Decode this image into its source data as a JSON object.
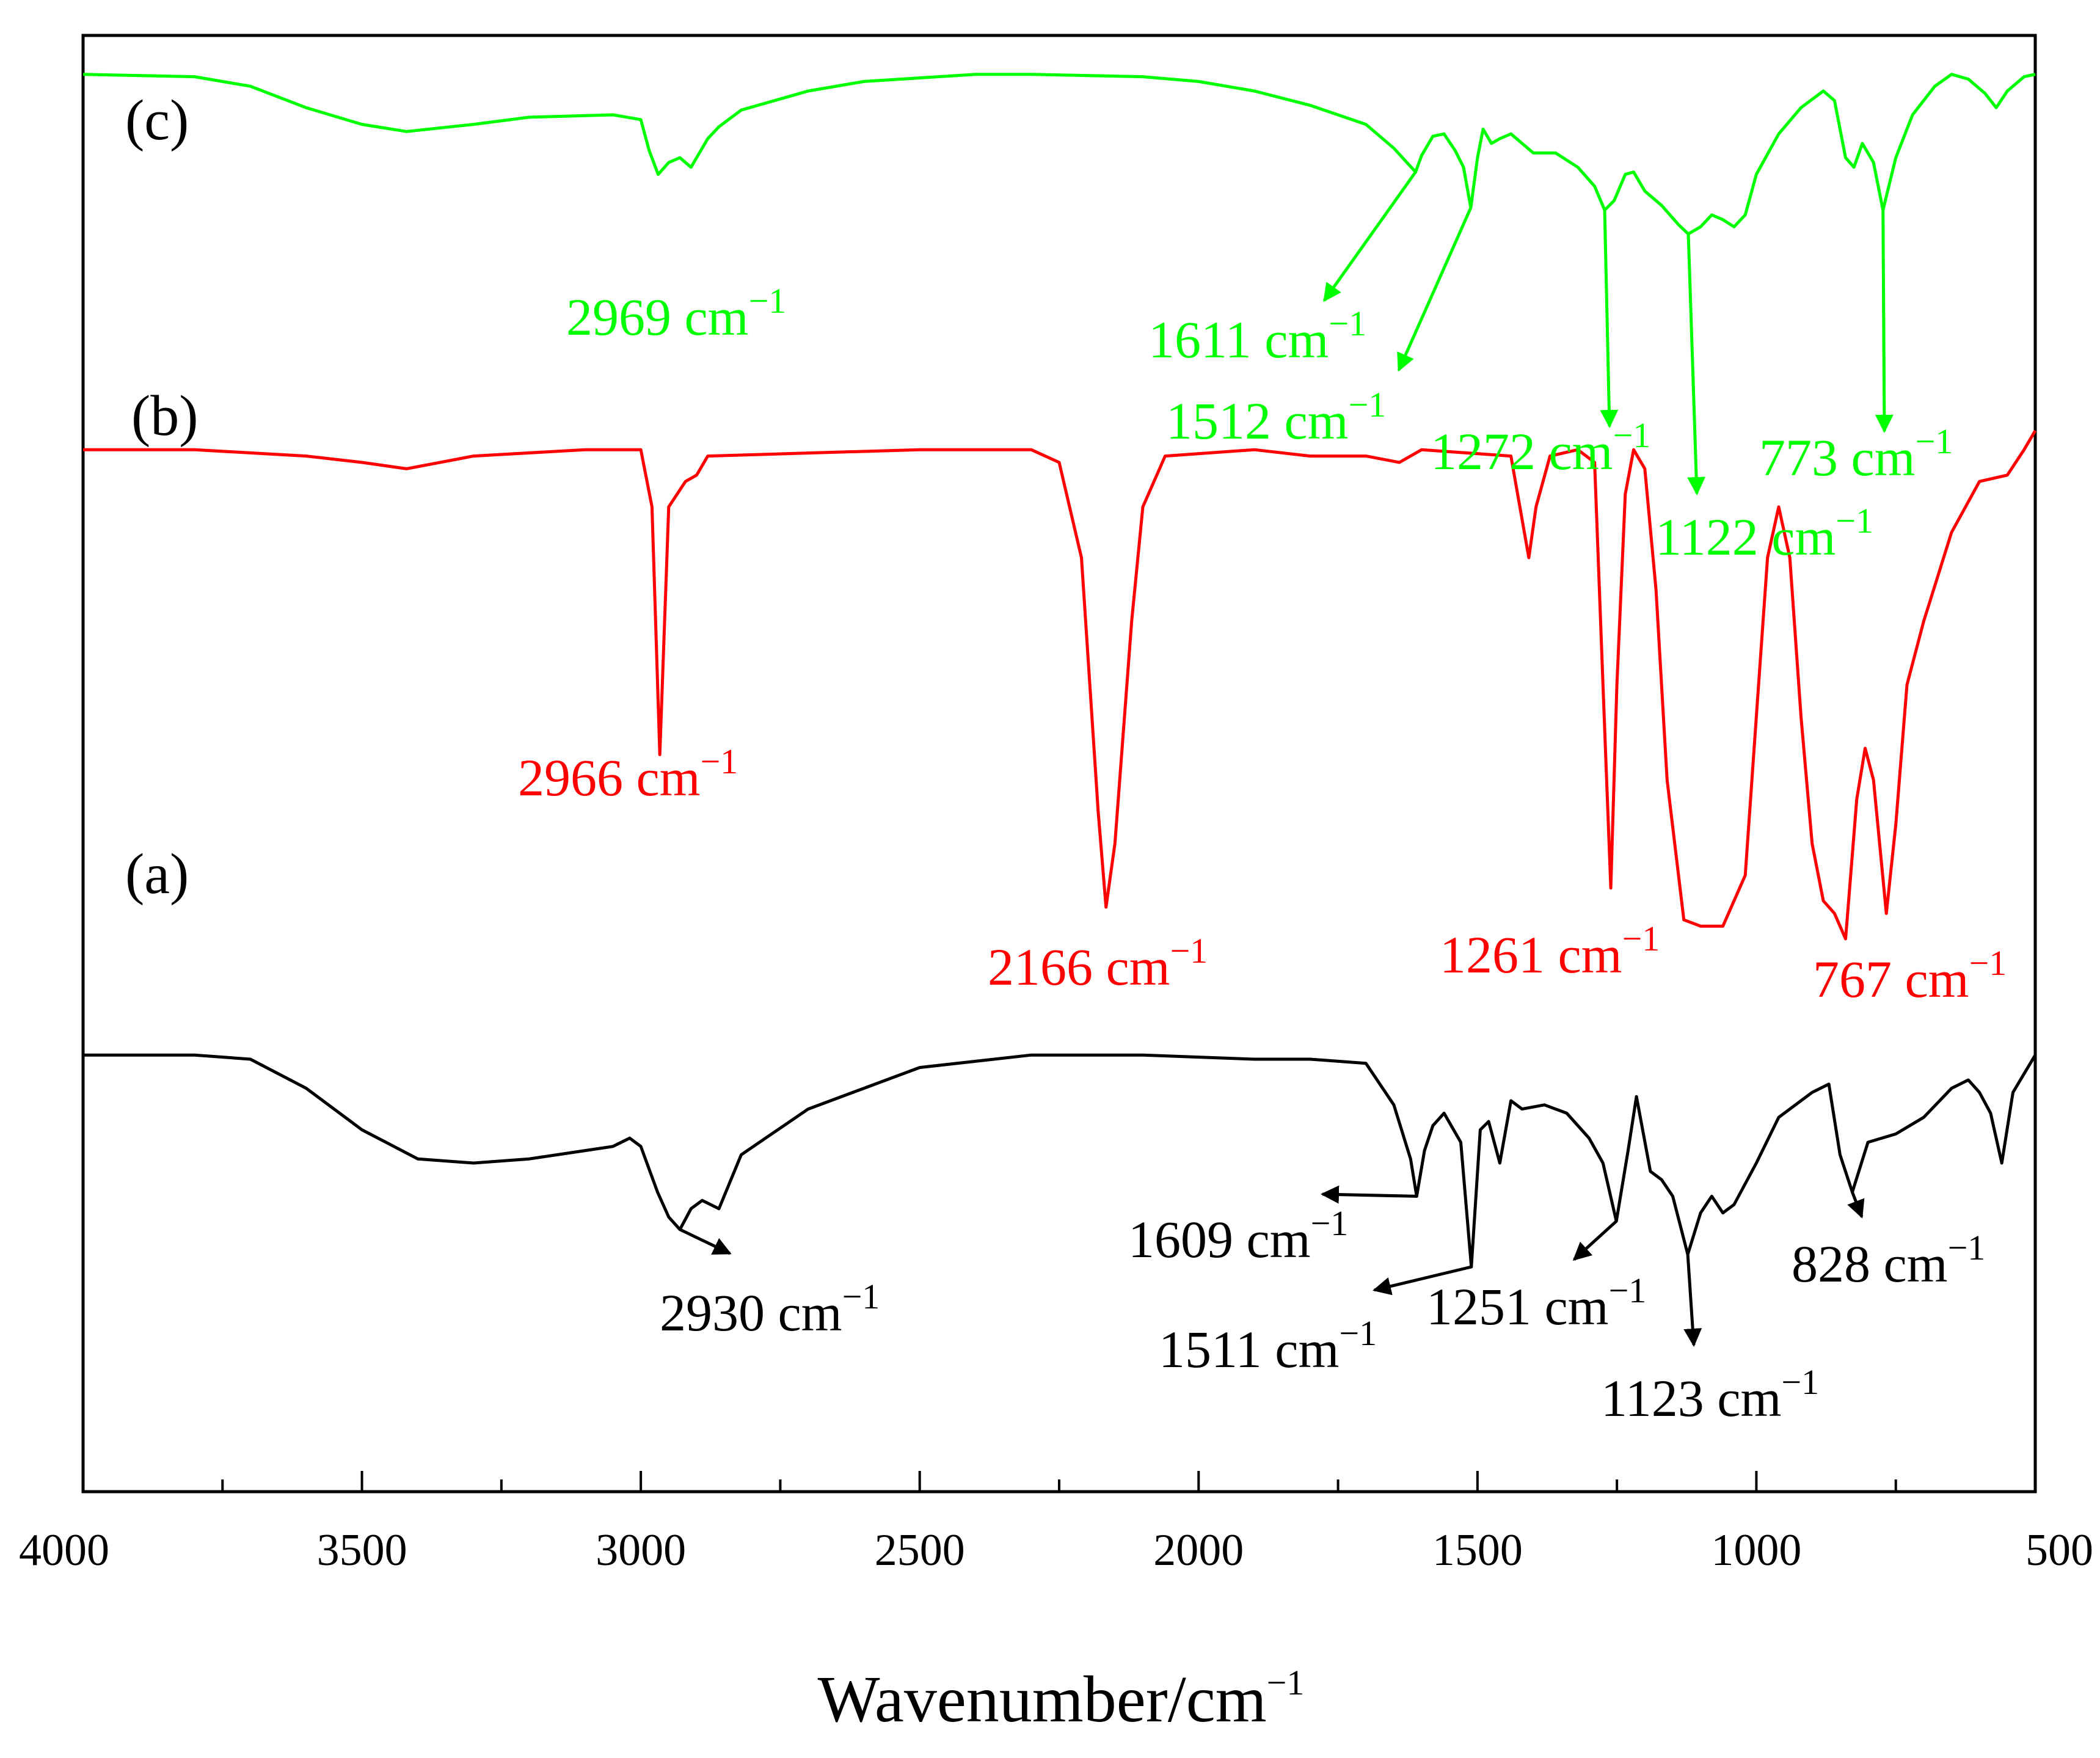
{
  "chart_data": {
    "type": "line",
    "title": "",
    "xlabel": "Wavenumber/cm",
    "xlabel_superscript": "−1",
    "ylabel": "",
    "xlim": [
      4000,
      500
    ],
    "x_reversed": true,
    "x_ticks": [
      4000,
      3500,
      3000,
      2500,
      2000,
      1500,
      1000,
      500
    ],
    "x_tick_labels": [
      "4000",
      "3500",
      "3000",
      "2500",
      "2000",
      "1500",
      "1000",
      "500"
    ],
    "x_minor_step": 250,
    "y_ticks_shown": false,
    "grid": false,
    "legend": "none",
    "unit_superscript": "−1",
    "series": [
      {
        "id": "a",
        "tag": "(a)",
        "color": "#000000",
        "points": [
          [
            4000,
            96
          ],
          [
            3800,
            96
          ],
          [
            3700,
            95
          ],
          [
            3600,
            88
          ],
          [
            3500,
            78
          ],
          [
            3400,
            71
          ],
          [
            3300,
            70
          ],
          [
            3200,
            71
          ],
          [
            3100,
            73
          ],
          [
            3050,
            74
          ],
          [
            3020,
            76
          ],
          [
            3000,
            74
          ],
          [
            2970,
            63
          ],
          [
            2950,
            57
          ],
          [
            2930,
            54
          ],
          [
            2910,
            59
          ],
          [
            2890,
            61
          ],
          [
            2860,
            59
          ],
          [
            2820,
            72
          ],
          [
            2700,
            83
          ],
          [
            2600,
            88
          ],
          [
            2500,
            93
          ],
          [
            2300,
            96
          ],
          [
            2100,
            96
          ],
          [
            1900,
            95
          ],
          [
            1800,
            95
          ],
          [
            1700,
            94
          ],
          [
            1650,
            84
          ],
          [
            1620,
            71
          ],
          [
            1609,
            62
          ],
          [
            1595,
            73
          ],
          [
            1580,
            79
          ],
          [
            1560,
            82
          ],
          [
            1530,
            75
          ],
          [
            1511,
            45
          ],
          [
            1495,
            78
          ],
          [
            1480,
            80
          ],
          [
            1460,
            70
          ],
          [
            1440,
            85
          ],
          [
            1420,
            83
          ],
          [
            1380,
            84
          ],
          [
            1340,
            82
          ],
          [
            1300,
            76
          ],
          [
            1275,
            70
          ],
          [
            1251,
            56
          ],
          [
            1230,
            73
          ],
          [
            1215,
            86
          ],
          [
            1190,
            68
          ],
          [
            1170,
            66
          ],
          [
            1150,
            62
          ],
          [
            1123,
            48
          ],
          [
            1100,
            58
          ],
          [
            1080,
            62
          ],
          [
            1060,
            58
          ],
          [
            1040,
            60
          ],
          [
            1000,
            70
          ],
          [
            960,
            81
          ],
          [
            900,
            87
          ],
          [
            870,
            89
          ],
          [
            850,
            72
          ],
          [
            828,
            63
          ],
          [
            800,
            75
          ],
          [
            750,
            77
          ],
          [
            700,
            81
          ],
          [
            650,
            88
          ],
          [
            620,
            90
          ],
          [
            600,
            87
          ],
          [
            580,
            82
          ],
          [
            560,
            70
          ],
          [
            540,
            87
          ],
          [
            500,
            96
          ]
        ],
        "annotations": [
          {
            "label": "2930 cm",
            "wavenumber": 2930
          },
          {
            "label": "1609 cm",
            "wavenumber": 1609
          },
          {
            "label": "1511 cm",
            "wavenumber": 1511
          },
          {
            "label": "1251 cm",
            "wavenumber": 1251
          },
          {
            "label": "1123 cm",
            "wavenumber": 1123
          },
          {
            "label": "828 cm",
            "wavenumber": 828
          }
        ]
      },
      {
        "id": "b",
        "tag": "(b)",
        "color": "#ff0000",
        "points": [
          [
            4000,
            97
          ],
          [
            3800,
            97
          ],
          [
            3600,
            96
          ],
          [
            3500,
            95
          ],
          [
            3420,
            94
          ],
          [
            3300,
            96
          ],
          [
            3100,
            97
          ],
          [
            3000,
            97
          ],
          [
            2980,
            88
          ],
          [
            2966,
            49
          ],
          [
            2950,
            88
          ],
          [
            2920,
            92
          ],
          [
            2900,
            93
          ],
          [
            2880,
            96
          ],
          [
            2500,
            97
          ],
          [
            2300,
            97
          ],
          [
            2250,
            95
          ],
          [
            2210,
            80
          ],
          [
            2180,
            40
          ],
          [
            2166,
            25
          ],
          [
            2150,
            35
          ],
          [
            2120,
            70
          ],
          [
            2100,
            88
          ],
          [
            2060,
            96
          ],
          [
            1900,
            97
          ],
          [
            1800,
            96
          ],
          [
            1700,
            96
          ],
          [
            1640,
            95
          ],
          [
            1600,
            97
          ],
          [
            1440,
            96
          ],
          [
            1420,
            86
          ],
          [
            1408,
            80
          ],
          [
            1395,
            88
          ],
          [
            1370,
            96
          ],
          [
            1320,
            97
          ],
          [
            1290,
            95
          ],
          [
            1275,
            60
          ],
          [
            1261,
            28
          ],
          [
            1250,
            60
          ],
          [
            1235,
            90
          ],
          [
            1220,
            97
          ],
          [
            1200,
            94
          ],
          [
            1180,
            75
          ],
          [
            1160,
            45
          ],
          [
            1130,
            23
          ],
          [
            1100,
            22
          ],
          [
            1060,
            22
          ],
          [
            1020,
            30
          ],
          [
            1000,
            55
          ],
          [
            980,
            80
          ],
          [
            960,
            88
          ],
          [
            940,
            80
          ],
          [
            920,
            55
          ],
          [
            900,
            35
          ],
          [
            880,
            26
          ],
          [
            860,
            24
          ],
          [
            840,
            20
          ],
          [
            820,
            42
          ],
          [
            805,
            50
          ],
          [
            790,
            45
          ],
          [
            767,
            24
          ],
          [
            750,
            38
          ],
          [
            730,
            60
          ],
          [
            700,
            70
          ],
          [
            650,
            84
          ],
          [
            600,
            92
          ],
          [
            550,
            93
          ],
          [
            520,
            97
          ],
          [
            500,
            100
          ]
        ],
        "annotations": [
          {
            "label": "2966 cm",
            "wavenumber": 2966
          },
          {
            "label": "2166 cm",
            "wavenumber": 2166
          },
          {
            "label": "1261 cm",
            "wavenumber": 1261
          },
          {
            "label": "767 cm",
            "wavenumber": 767
          }
        ]
      },
      {
        "id": "c",
        "tag": "(c)",
        "color": "#00ff00",
        "points": [
          [
            4000,
            97
          ],
          [
            3800,
            96
          ],
          [
            3700,
            92
          ],
          [
            3600,
            83
          ],
          [
            3500,
            76
          ],
          [
            3420,
            73
          ],
          [
            3300,
            76
          ],
          [
            3200,
            79
          ],
          [
            3050,
            80
          ],
          [
            3000,
            78
          ],
          [
            2985,
            65
          ],
          [
            2969,
            55
          ],
          [
            2950,
            60
          ],
          [
            2930,
            62
          ],
          [
            2910,
            58
          ],
          [
            2880,
            70
          ],
          [
            2860,
            75
          ],
          [
            2820,
            82
          ],
          [
            2700,
            90
          ],
          [
            2600,
            94
          ],
          [
            2400,
            97
          ],
          [
            2300,
            97
          ],
          [
            2100,
            96
          ],
          [
            2000,
            94
          ],
          [
            1900,
            90
          ],
          [
            1800,
            84
          ],
          [
            1700,
            76
          ],
          [
            1650,
            66
          ],
          [
            1611,
            56
          ],
          [
            1600,
            63
          ],
          [
            1580,
            71
          ],
          [
            1560,
            72
          ],
          [
            1540,
            65
          ],
          [
            1525,
            58
          ],
          [
            1512,
            41
          ],
          [
            1500,
            62
          ],
          [
            1490,
            74
          ],
          [
            1475,
            68
          ],
          [
            1460,
            70
          ],
          [
            1440,
            72
          ],
          [
            1400,
            64
          ],
          [
            1360,
            64
          ],
          [
            1320,
            58
          ],
          [
            1290,
            50
          ],
          [
            1272,
            40
          ],
          [
            1255,
            44
          ],
          [
            1235,
            55
          ],
          [
            1220,
            56
          ],
          [
            1200,
            48
          ],
          [
            1170,
            42
          ],
          [
            1140,
            34
          ],
          [
            1122,
            30
          ],
          [
            1100,
            33
          ],
          [
            1080,
            38
          ],
          [
            1060,
            36
          ],
          [
            1040,
            33
          ],
          [
            1020,
            38
          ],
          [
            1000,
            55
          ],
          [
            960,
            72
          ],
          [
            920,
            83
          ],
          [
            880,
            90
          ],
          [
            860,
            86
          ],
          [
            840,
            62
          ],
          [
            825,
            58
          ],
          [
            810,
            68
          ],
          [
            790,
            60
          ],
          [
            773,
            40
          ],
          [
            750,
            62
          ],
          [
            720,
            80
          ],
          [
            680,
            92
          ],
          [
            650,
            97
          ],
          [
            620,
            95
          ],
          [
            590,
            89
          ],
          [
            570,
            83
          ],
          [
            550,
            90
          ],
          [
            520,
            96
          ],
          [
            500,
            97
          ]
        ],
        "annotations": [
          {
            "label": "2969 cm",
            "wavenumber": 2969
          },
          {
            "label": "1611 cm",
            "wavenumber": 1611
          },
          {
            "label": "1512 cm",
            "wavenumber": 1512
          },
          {
            "label": "1272 cm",
            "wavenumber": 1272
          },
          {
            "label": "1122 cm",
            "wavenumber": 1122
          },
          {
            "label": "773 cm",
            "wavenumber": 773
          }
        ]
      }
    ]
  }
}
